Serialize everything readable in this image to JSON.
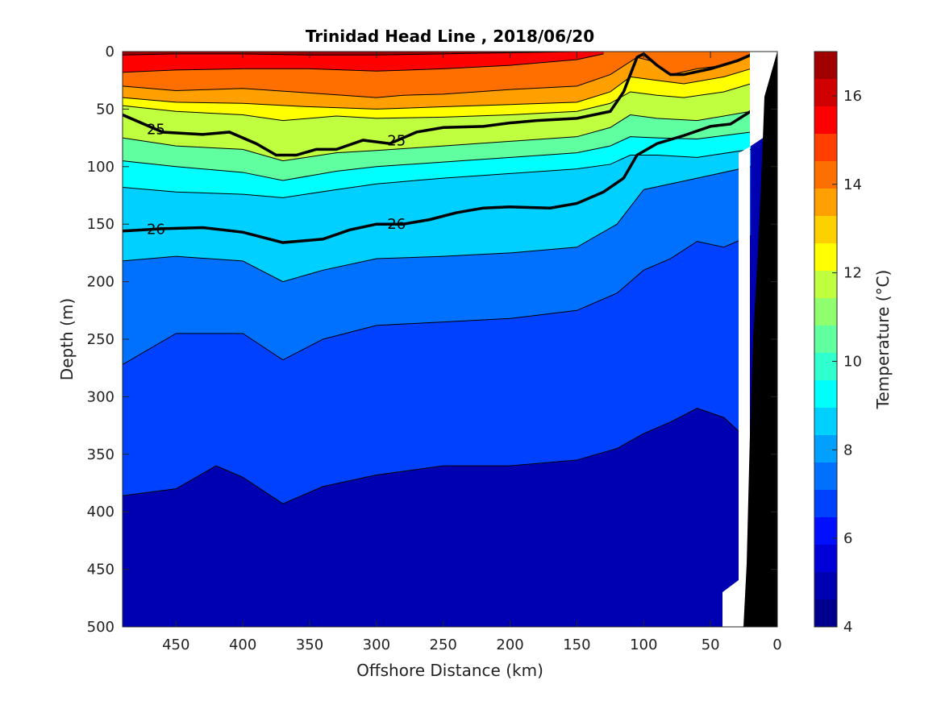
{
  "chart_data": {
    "type": "heatmap",
    "title": "Trinidad Head Line , 2018/06/20",
    "xlabel": "Offshore Distance (km)",
    "ylabel": "Depth (m)",
    "xlim": [
      490,
      0
    ],
    "ylim": [
      0,
      500
    ],
    "x_ticks": [
      "450",
      "400",
      "350",
      "300",
      "250",
      "200",
      "150",
      "100",
      "50",
      "0"
    ],
    "x_tick_values": [
      450,
      400,
      350,
      300,
      250,
      200,
      150,
      100,
      50,
      0
    ],
    "y_ticks": [
      "0",
      "50",
      "100",
      "150",
      "200",
      "250",
      "300",
      "350",
      "400",
      "450",
      "500"
    ],
    "y_tick_values": [
      0,
      50,
      100,
      150,
      200,
      250,
      300,
      350,
      400,
      450,
      500
    ],
    "colorbar": {
      "label": "Temperature (°C)",
      "range": [
        4,
        17
      ],
      "ticks": [
        "4",
        "6",
        "8",
        "10",
        "12",
        "14",
        "16"
      ],
      "tick_values": [
        4,
        6,
        8,
        10,
        12,
        14,
        16
      ],
      "colors": [
        "#00008f",
        "#0000b3",
        "#0000d9",
        "#0010ff",
        "#0040ff",
        "#0070ff",
        "#00a0ff",
        "#00d0ff",
        "#00ffff",
        "#30ffcf",
        "#60ff9f",
        "#90ff6f",
        "#c0ff3f",
        "#ffff00",
        "#ffd000",
        "#ff9f00",
        "#ff6f00",
        "#ff3f00",
        "#ff0000",
        "#d00000",
        "#a00000"
      ]
    },
    "isotherms": [
      {
        "temp": 16,
        "points": [
          [
            490,
            3
          ],
          [
            450,
            2
          ],
          [
            400,
            2
          ],
          [
            350,
            3
          ],
          [
            300,
            3
          ],
          [
            250,
            2
          ],
          [
            200,
            1
          ],
          [
            150,
            0
          ]
        ]
      },
      {
        "temp": 15,
        "points": [
          [
            490,
            18
          ],
          [
            450,
            16
          ],
          [
            400,
            15
          ],
          [
            350,
            15
          ],
          [
            300,
            17
          ],
          [
            250,
            15
          ],
          [
            200,
            12
          ],
          [
            150,
            7
          ],
          [
            130,
            2
          ]
        ]
      },
      {
        "temp": 14,
        "points": [
          [
            490,
            30
          ],
          [
            450,
            34
          ],
          [
            400,
            32
          ],
          [
            350,
            36
          ],
          [
            300,
            40
          ],
          [
            280,
            38
          ],
          [
            250,
            37
          ],
          [
            200,
            33
          ],
          [
            150,
            30
          ],
          [
            125,
            20
          ],
          [
            105,
            5
          ],
          [
            95,
            8
          ],
          [
            80,
            20
          ],
          [
            60,
            15
          ],
          [
            40,
            12
          ],
          [
            20,
            3
          ]
        ]
      },
      {
        "temp": 13,
        "points": [
          [
            490,
            40
          ],
          [
            450,
            44
          ],
          [
            400,
            45
          ],
          [
            350,
            48
          ],
          [
            300,
            50
          ],
          [
            250,
            48
          ],
          [
            200,
            46
          ],
          [
            150,
            44
          ],
          [
            125,
            35
          ],
          [
            110,
            22
          ],
          [
            90,
            25
          ],
          [
            70,
            28
          ],
          [
            40,
            22
          ],
          [
            20,
            15
          ]
        ]
      },
      {
        "temp": 12,
        "points": [
          [
            490,
            47
          ],
          [
            450,
            52
          ],
          [
            400,
            55
          ],
          [
            370,
            60
          ],
          [
            330,
            56
          ],
          [
            300,
            58
          ],
          [
            250,
            57
          ],
          [
            200,
            55
          ],
          [
            150,
            52
          ],
          [
            125,
            45
          ],
          [
            110,
            35
          ],
          [
            90,
            38
          ],
          [
            70,
            40
          ],
          [
            40,
            35
          ],
          [
            20,
            28
          ]
        ]
      },
      {
        "temp": 11,
        "points": [
          [
            490,
            75
          ],
          [
            450,
            82
          ],
          [
            400,
            85
          ],
          [
            370,
            95
          ],
          [
            330,
            88
          ],
          [
            300,
            86
          ],
          [
            250,
            82
          ],
          [
            200,
            78
          ],
          [
            150,
            74
          ],
          [
            125,
            66
          ],
          [
            110,
            55
          ],
          [
            90,
            58
          ],
          [
            60,
            60
          ],
          [
            20,
            52
          ]
        ]
      },
      {
        "temp": 10,
        "points": [
          [
            490,
            95
          ],
          [
            450,
            100
          ],
          [
            400,
            105
          ],
          [
            370,
            112
          ],
          [
            330,
            104
          ],
          [
            300,
            100
          ],
          [
            250,
            96
          ],
          [
            200,
            92
          ],
          [
            150,
            88
          ],
          [
            125,
            82
          ],
          [
            110,
            74
          ],
          [
            90,
            75
          ],
          [
            60,
            76
          ],
          [
            20,
            70
          ]
        ]
      },
      {
        "temp": 9,
        "points": [
          [
            490,
            118
          ],
          [
            450,
            122
          ],
          [
            400,
            124
          ],
          [
            370,
            127
          ],
          [
            330,
            120
          ],
          [
            300,
            115
          ],
          [
            250,
            110
          ],
          [
            200,
            106
          ],
          [
            150,
            102
          ],
          [
            125,
            98
          ],
          [
            110,
            90
          ],
          [
            90,
            90
          ],
          [
            60,
            92
          ],
          [
            20,
            85
          ]
        ]
      },
      {
        "temp": 8,
        "points": [
          [
            490,
            182
          ],
          [
            450,
            178
          ],
          [
            400,
            182
          ],
          [
            370,
            200
          ],
          [
            340,
            190
          ],
          [
            300,
            180
          ],
          [
            250,
            178
          ],
          [
            200,
            175
          ],
          [
            150,
            170
          ],
          [
            120,
            150
          ],
          [
            100,
            120
          ],
          [
            80,
            115
          ],
          [
            60,
            110
          ],
          [
            20,
            100
          ]
        ]
      },
      {
        "temp": 7,
        "points": [
          [
            490,
            272
          ],
          [
            450,
            245
          ],
          [
            400,
            245
          ],
          [
            370,
            268
          ],
          [
            340,
            250
          ],
          [
            300,
            238
          ],
          [
            250,
            235
          ],
          [
            200,
            232
          ],
          [
            150,
            225
          ],
          [
            120,
            210
          ],
          [
            100,
            190
          ],
          [
            80,
            180
          ],
          [
            60,
            165
          ],
          [
            40,
            170
          ],
          [
            20,
            160
          ]
        ]
      },
      {
        "temp": 6,
        "points": [
          [
            490,
            386
          ],
          [
            450,
            380
          ],
          [
            420,
            360
          ],
          [
            400,
            370
          ],
          [
            370,
            393
          ],
          [
            340,
            378
          ],
          [
            300,
            368
          ],
          [
            250,
            360
          ],
          [
            200,
            360
          ],
          [
            150,
            355
          ],
          [
            120,
            345
          ],
          [
            100,
            332
          ],
          [
            80,
            322
          ],
          [
            60,
            310
          ],
          [
            40,
            318
          ],
          [
            27,
            332
          ]
        ]
      }
    ],
    "bold_isopycnals": [
      {
        "label": "25",
        "points": [
          [
            490,
            55
          ],
          [
            460,
            70
          ],
          [
            430,
            72
          ],
          [
            410,
            70
          ],
          [
            390,
            80
          ],
          [
            375,
            90
          ],
          [
            360,
            90
          ],
          [
            345,
            85
          ],
          [
            330,
            85
          ],
          [
            310,
            77
          ],
          [
            290,
            80
          ],
          [
            270,
            70
          ],
          [
            250,
            66
          ],
          [
            220,
            65
          ],
          [
            200,
            62
          ],
          [
            180,
            60
          ],
          [
            150,
            58
          ],
          [
            125,
            52
          ],
          [
            115,
            35
          ],
          [
            110,
            20
          ],
          [
            105,
            5
          ],
          [
            100,
            2
          ],
          [
            90,
            12
          ],
          [
            80,
            20
          ],
          [
            70,
            20
          ],
          [
            50,
            15
          ],
          [
            30,
            8
          ],
          [
            20,
            3
          ]
        ]
      },
      {
        "label": "26",
        "points": [
          [
            490,
            156
          ],
          [
            460,
            154
          ],
          [
            430,
            153
          ],
          [
            400,
            157
          ],
          [
            370,
            166
          ],
          [
            340,
            163
          ],
          [
            320,
            155
          ],
          [
            300,
            150
          ],
          [
            280,
            150
          ],
          [
            260,
            146
          ],
          [
            240,
            140
          ],
          [
            220,
            136
          ],
          [
            200,
            135
          ],
          [
            170,
            136
          ],
          [
            150,
            132
          ],
          [
            130,
            122
          ],
          [
            115,
            110
          ],
          [
            105,
            90
          ],
          [
            90,
            80
          ],
          [
            70,
            73
          ],
          [
            50,
            65
          ],
          [
            35,
            63
          ],
          [
            20,
            52
          ]
        ]
      }
    ]
  }
}
